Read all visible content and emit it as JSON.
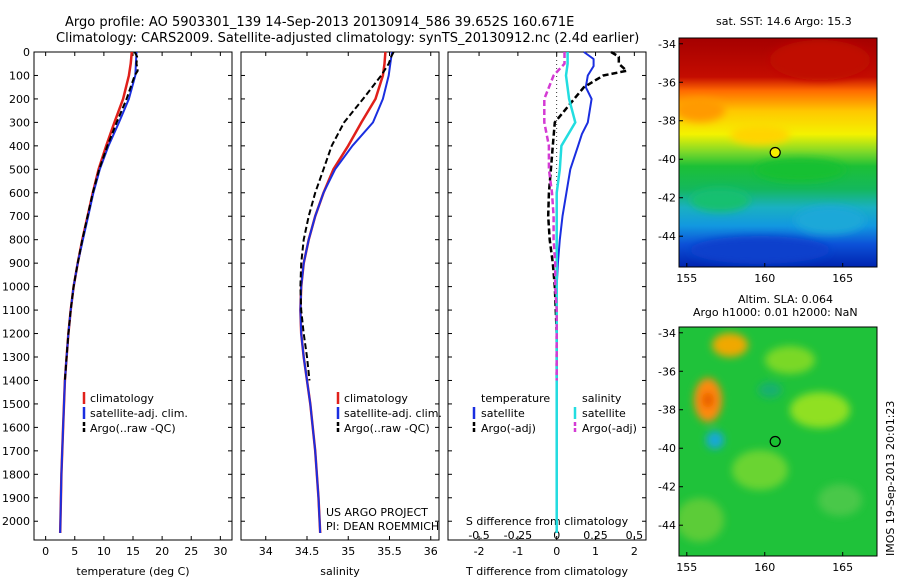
{
  "header": {
    "line1": "Argo profile: AO 5903301_139 14-Sep-2013 20130914_586 39.652S 160.671E",
    "line2": "Climatology: CARS2009. Satellite-adjusted climatology: synTS_20130912.nc (2.4d earlier)"
  },
  "colors": {
    "climatology": "#e0201b",
    "satellite": "#1a2ee0",
    "argo": "#000000",
    "salinity_satellite": "#22dde0",
    "salinity_argo": "#d43bd4"
  },
  "legend_profile": {
    "items": [
      "climatology",
      "satellite-adj. clim.",
      "Argo(..raw -QC)"
    ]
  },
  "legend_diff": {
    "temperature_header": "temperature",
    "salinity_header": "salinity",
    "satellite": "satellite",
    "argo": "Argo(-adj)"
  },
  "credit": {
    "line1": "US ARGO PROJECT",
    "line2": "PI: DEAN ROEMMICH"
  },
  "maps": {
    "sst_title": "sat. SST: 14.6 Argo: 15.3",
    "sla_title1": "Altim. SLA: 0.064",
    "sla_title2": "Argo h1000: 0.01 h2000: NaN",
    "lat_ticks": [
      "-34",
      "-36",
      "-38",
      "-40",
      "-42",
      "-44"
    ],
    "lon_ticks": [
      "155",
      "160",
      "165"
    ],
    "argo_lat": -39.652,
    "argo_lon": 160.671
  },
  "side_stamp": "IMOS 19-Sep-2013 20:01:23",
  "chart_data": [
    {
      "type": "line",
      "name": "temperature",
      "xlabel": "temperature (deg C)",
      "ylabel": "",
      "xlim": [
        -2,
        32
      ],
      "ylim": [
        2080,
        0
      ],
      "xticks": [
        "0",
        "5",
        "10",
        "15",
        "20",
        "25",
        "30"
      ],
      "yticks": [
        "0",
        "100",
        "200",
        "300",
        "400",
        "500",
        "600",
        "700",
        "800",
        "900",
        "1000",
        "1100",
        "1200",
        "1300",
        "1400",
        "1500",
        "1600",
        "1700",
        "1800",
        "1900",
        "2000"
      ],
      "series": [
        {
          "name": "climatology",
          "depth": [
            0,
            50,
            100,
            200,
            300,
            400,
            500,
            600,
            700,
            800,
            900,
            1000,
            1100,
            1200,
            1300,
            1400,
            1600,
            1800,
            2050
          ],
          "values": [
            14.8,
            14.6,
            14.3,
            13.3,
            11.8,
            10.4,
            9.1,
            8.1,
            7.2,
            6.3,
            5.5,
            4.8,
            4.3,
            3.9,
            3.6,
            3.3,
            3.0,
            2.7,
            2.5
          ]
        },
        {
          "name": "satellite-adj. clim.",
          "depth": [
            0,
            50,
            100,
            200,
            300,
            400,
            500,
            600,
            700,
            800,
            900,
            1000,
            1100,
            1200,
            1300,
            1400,
            1600,
            1800,
            2050
          ],
          "values": [
            15.6,
            15.5,
            15.4,
            14.3,
            12.6,
            10.8,
            9.3,
            8.2,
            7.3,
            6.4,
            5.5,
            4.8,
            4.3,
            3.9,
            3.6,
            3.3,
            3.0,
            2.7,
            2.5
          ]
        },
        {
          "name": "Argo(..raw -QC)",
          "depth": [
            0,
            20,
            50,
            80,
            100,
            200,
            300,
            400,
            500,
            600,
            700,
            800,
            900,
            1000,
            1100,
            1200,
            1300,
            1400
          ],
          "values": [
            15.3,
            15.7,
            15.6,
            15.8,
            15.3,
            13.9,
            12.2,
            10.6,
            9.2,
            8.1,
            7.2,
            6.3,
            5.5,
            4.8,
            4.3,
            3.9,
            3.6,
            3.3
          ]
        }
      ]
    },
    {
      "type": "line",
      "name": "salinity",
      "xlabel": "salinity",
      "ylabel": "",
      "xlim": [
        33.7,
        36.1
      ],
      "ylim": [
        2080,
        0
      ],
      "xticks": [
        "34",
        "34.5",
        "35",
        "35.5",
        "36"
      ],
      "series": [
        {
          "name": "climatology",
          "depth": [
            0,
            50,
            100,
            200,
            300,
            400,
            500,
            600,
            700,
            800,
            900,
            1000,
            1100,
            1200,
            1300,
            1400,
            1500,
            1700,
            1900,
            2050
          ],
          "values": [
            35.45,
            35.44,
            35.42,
            35.33,
            35.16,
            35.0,
            34.82,
            34.7,
            34.6,
            34.52,
            34.46,
            34.43,
            34.42,
            34.43,
            34.46,
            34.5,
            34.54,
            34.6,
            34.64,
            34.66
          ]
        },
        {
          "name": "satellite-adj. clim.",
          "depth": [
            0,
            50,
            100,
            200,
            300,
            400,
            500,
            600,
            700,
            800,
            900,
            1000,
            1100,
            1200,
            1300,
            1400,
            1500,
            1700,
            1900,
            2050
          ],
          "values": [
            35.53,
            35.51,
            35.49,
            35.42,
            35.3,
            35.05,
            34.84,
            34.7,
            34.6,
            34.52,
            34.46,
            34.43,
            34.42,
            34.43,
            34.46,
            34.5,
            34.54,
            34.6,
            34.64,
            34.66
          ]
        },
        {
          "name": "Argo(..raw -QC)",
          "depth": [
            0,
            20,
            50,
            100,
            200,
            300,
            400,
            500,
            600,
            700,
            800,
            900,
            1000,
            1100,
            1200,
            1300,
            1400
          ],
          "values": [
            35.55,
            35.52,
            35.49,
            35.4,
            35.18,
            34.95,
            34.8,
            34.7,
            34.6,
            34.52,
            34.46,
            34.43,
            34.42,
            34.43,
            34.46,
            34.5,
            34.53
          ]
        }
      ]
    },
    {
      "type": "line",
      "name": "difference",
      "xlabel": "T difference from climatology",
      "xlabel_top": "S difference from climatology",
      "xlim": [
        -2.8,
        2.3
      ],
      "ylim": [
        2080,
        0
      ],
      "xticks": [
        "-2",
        "-1",
        "0",
        "1",
        "2"
      ],
      "xticks_s": [
        "-0.5",
        "-0.25",
        "0",
        "0.25",
        "0.5"
      ],
      "series": [
        {
          "name": "temperature satellite",
          "depth": [
            0,
            30,
            60,
            100,
            150,
            200,
            250,
            300,
            350,
            400,
            500,
            600,
            700,
            800,
            900,
            1000,
            1200,
            1400,
            1600,
            1800,
            2050
          ],
          "values": [
            0.7,
            0.95,
            0.95,
            0.8,
            0.75,
            0.9,
            0.85,
            0.8,
            0.65,
            0.55,
            0.35,
            0.25,
            0.15,
            0.08,
            0.03,
            0.0,
            0.0,
            0.0,
            0.0,
            0.0,
            0.0
          ]
        },
        {
          "name": "temperature Argo(-adj)",
          "depth": [
            0,
            20,
            50,
            80,
            100,
            150,
            200,
            250,
            300,
            400,
            500,
            600,
            700,
            800,
            900,
            1000,
            1200,
            1400
          ],
          "values": [
            1.4,
            1.6,
            1.6,
            1.8,
            1.2,
            0.7,
            0.45,
            0.2,
            -0.05,
            -0.1,
            -0.15,
            -0.2,
            -0.22,
            -0.18,
            -0.1,
            -0.05,
            0.0,
            0.0
          ]
        },
        {
          "name": "salinity satellite",
          "depth": [
            0,
            50,
            100,
            200,
            300,
            400,
            500,
            600,
            700,
            800,
            900,
            1000,
            1200,
            1400,
            1600,
            1800,
            2050
          ],
          "values": [
            0.07,
            0.07,
            0.06,
            0.08,
            0.12,
            0.03,
            0.02,
            0.0,
            0.0,
            0.0,
            0.0,
            0.0,
            0.0,
            0.0,
            0.0,
            0.0,
            0.0
          ]
        },
        {
          "name": "salinity Argo(-adj)",
          "depth": [
            0,
            50,
            100,
            200,
            300,
            400,
            500,
            600,
            700,
            800,
            900,
            1000,
            1100,
            1200,
            1300,
            1400
          ],
          "values": [
            0.05,
            0.05,
            -0.02,
            -0.08,
            -0.08,
            -0.05,
            -0.05,
            -0.03,
            -0.02,
            -0.02,
            -0.01,
            -0.01,
            0.0,
            0.0,
            0.0,
            0.0
          ]
        }
      ]
    }
  ]
}
